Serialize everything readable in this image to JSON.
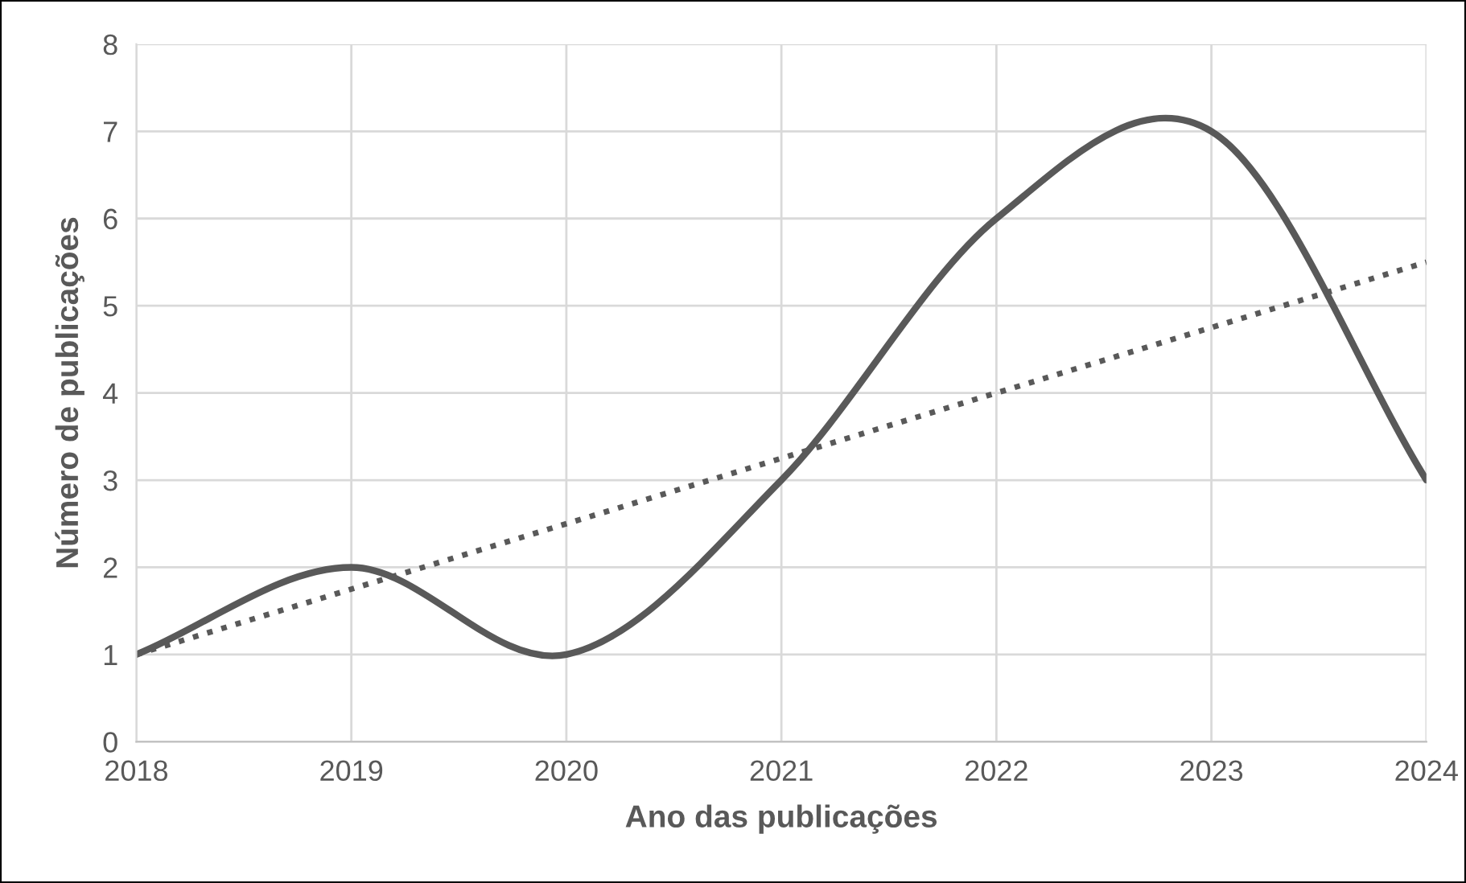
{
  "chart_data": {
    "type": "line",
    "xlabel": "Ano das publicações",
    "ylabel": "Número de publicações",
    "x": [
      2018,
      2019,
      2020,
      2021,
      2022,
      2023,
      2024
    ],
    "series": [
      {
        "color": "#595959",
        "values": [
          1,
          2,
          1,
          3,
          6,
          7,
          3
        ],
        "line_style": "solid"
      },
      {
        "type": "line",
        "color": "#595959",
        "x": [
          2018,
          2024
        ],
        "values": [
          1.0,
          5.5
        ],
        "line_style": "dotted"
      }
    ],
    "xlim": [
      2018,
      2024
    ],
    "xticks": [
      2018,
      2019,
      2020,
      2021,
      2022,
      2023,
      2024
    ],
    "ylim": [
      0,
      8
    ],
    "yticks": [
      0,
      1,
      2,
      3,
      4,
      5,
      6,
      7,
      8
    ],
    "grid": true,
    "marker": "none",
    "legend": false
  }
}
